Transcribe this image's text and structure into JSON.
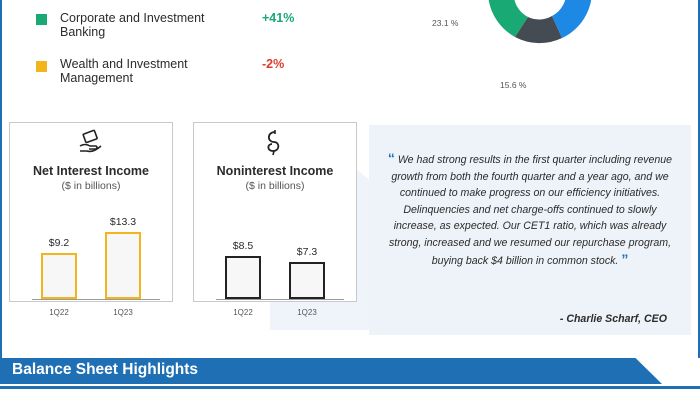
{
  "segments": [
    {
      "name": "Corporate and Investment Banking",
      "change": "+41%",
      "color": "#19a974",
      "change_color": "#19a974"
    },
    {
      "name": "Wealth and Investment Management",
      "change": "-2%",
      "color": "#f2b51d",
      "change_color": "#e03a2f"
    }
  ],
  "donut": {
    "labels": [
      "23.1 %",
      "15.6 %"
    ],
    "colors": {
      "green": "#19a974",
      "gray": "#444b52",
      "blue": "#1e88e5"
    }
  },
  "net_interest_income": {
    "title": "Net Interest Income",
    "subtitle": "($ in billions)",
    "icon": "hand-money-icon",
    "categories": [
      "1Q22",
      "1Q23"
    ],
    "values": [
      9.2,
      13.3
    ],
    "value_labels": [
      "$9.2",
      "$13.3"
    ],
    "color": "#f2b51d"
  },
  "noninterest_income": {
    "title": "Noninterest Income",
    "subtitle": "($ in billions)",
    "icon": "dollar-coil-icon",
    "categories": [
      "1Q22",
      "1Q23"
    ],
    "values": [
      8.5,
      7.3
    ],
    "value_labels": [
      "$8.5",
      "$7.3"
    ],
    "color": "#222222"
  },
  "quote": {
    "text": "We had strong results in the first quarter including revenue growth from both the fourth quarter and a year ago, and we continued to make progress on our efficiency initiatives. Delinquencies and net charge-offs continued to slowly increase, as expected. Our CET1 ratio, which was already strong, increased and we resumed our repurchase program, buying back $4 billion in common stock.",
    "open_mark": "“",
    "close_mark": "”",
    "author": "- Charlie Scharf, CEO"
  },
  "section": {
    "title": "Balance Sheet Highlights"
  }
}
